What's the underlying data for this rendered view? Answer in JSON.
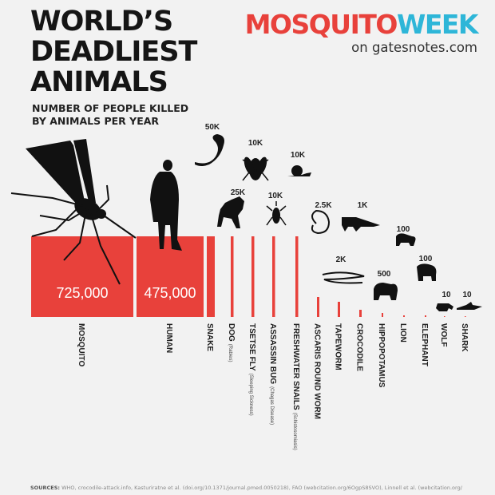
{
  "header": {
    "title_lines": [
      "WORLD’S",
      "DEADLIEST",
      "ANIMALS"
    ],
    "subtitle_lines": [
      "NUMBER OF PEOPLE KILLED",
      "BY ANIMALS PER YEAR"
    ]
  },
  "brand": {
    "name_part1": "MOSQUITO",
    "name_part2": "WEEK",
    "site": "on gatesnotes.com",
    "color_red": "#e8413b",
    "color_blue": "#2eb6d8"
  },
  "sources": {
    "label": "SOURCES:",
    "text": "WHO, crocodile-attack.info, Kasturiratne et al. (doi.org/10.1371/journal.pmed.0050218), FAO (webcitation.org/6OgpS8SVO), Linnell et al. (webcitation.org/"
  },
  "chart_data": {
    "type": "bar",
    "categories": [
      "MOSQUITO",
      "HUMAN",
      "SNAKE",
      "DOG",
      "TSETSE FLY",
      "ASSASSIN BUG",
      "FRESHWATER SNAILS",
      "ASCARIS ROUND WORM",
      "TAPEWORM",
      "CROCODILE",
      "HIPPOPOTAMUS",
      "LION",
      "ELEPHANT",
      "WOLF",
      "SHARK"
    ],
    "notes": [
      "",
      "",
      "",
      "(Rabies)",
      "(Sleeping Sickness)",
      "(Chagas Disease)",
      "(Schistosomiasis)",
      "",
      "",
      "",
      "",
      "",
      "",
      "",
      ""
    ],
    "values": [
      725000,
      475000,
      50000,
      25000,
      10000,
      10000,
      10000,
      2500,
      2000,
      1000,
      500,
      100,
      100,
      10,
      10
    ],
    "value_labels": [
      "725,000",
      "475,000",
      "50K",
      "25K",
      "10K",
      "10K",
      "10K",
      "2.5K",
      "2K",
      "1K",
      "500",
      "100",
      "100",
      "10",
      "10"
    ],
    "icons": [
      "mosquito-icon",
      "human-icon",
      "snake-icon",
      "dog-icon",
      "tsetse-fly-icon",
      "assassin-bug-icon",
      "snail-icon",
      "roundworm-icon",
      "tapeworm-icon",
      "crocodile-icon",
      "hippopotamus-icon",
      "lion-icon",
      "elephant-icon",
      "wolf-icon",
      "shark-icon"
    ],
    "bar_color": "#e8413b",
    "icon_color": "#111111",
    "title": "",
    "xlabel": "",
    "ylabel": "",
    "grid": false,
    "legend": "none"
  }
}
